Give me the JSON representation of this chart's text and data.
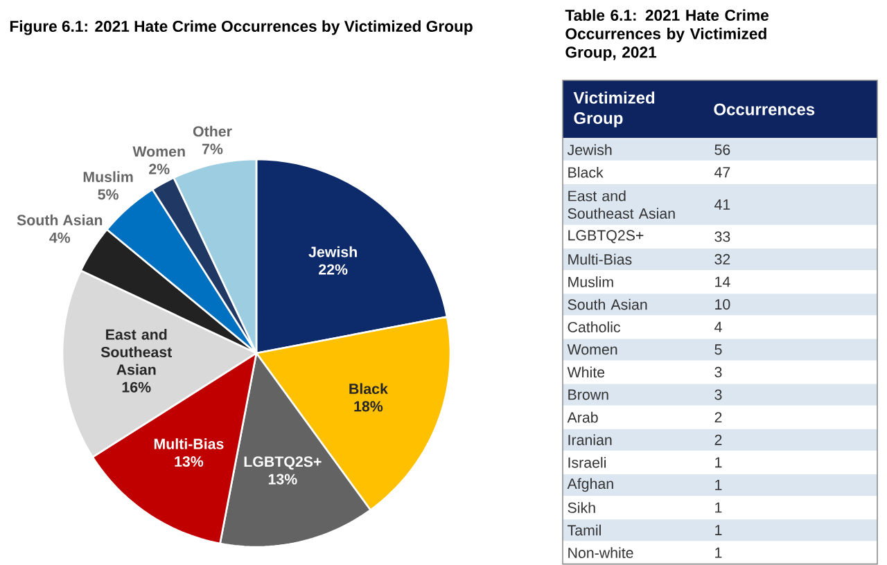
{
  "chart_data": [
    {
      "type": "pie",
      "title": "Figure 6.1: 2021 Hate Crime Occurrences by Victimized Group",
      "categories": [
        "Jewish",
        "Black",
        "LGBTQ2S+",
        "Multi-Bias",
        "East and Southeast Asian",
        "South Asian",
        "Muslim",
        "Women",
        "Other"
      ],
      "values": [
        22,
        18,
        13,
        13,
        16,
        4,
        5,
        2,
        7
      ],
      "value_labels": [
        "22%",
        "18%",
        "13%",
        "13%",
        "16%",
        "4%",
        "5%",
        "2%",
        "7%"
      ],
      "colors": [
        "#0d2a6b",
        "#ffc000",
        "#636363",
        "#c00000",
        "#d9d9d9",
        "#222222",
        "#0070c0",
        "#1f3864",
        "#9dcde0"
      ]
    },
    {
      "type": "other",
      "title": "Table 6.1: 2021 Hate Crime Occurrences by Victimized Group, 2021",
      "annotations": [
        "Victimized Group",
        "Occurrences"
      ],
      "data_labels": true,
      "categories": [
        "Jewish",
        "Black",
        "East and Southeast Asian",
        "LGBTQ2S+",
        "Multi-Bias",
        "Muslim",
        "South Asian",
        "Catholic",
        "Women",
        "White",
        "Brown",
        "Arab",
        "Iranian",
        "Israeli",
        "Afghan",
        "Sikh",
        "Tamil",
        "Non-white"
      ],
      "values": [
        56,
        47,
        41,
        33,
        32,
        14,
        10,
        4,
        5,
        3,
        3,
        2,
        2,
        1,
        1,
        1,
        1,
        1
      ]
    }
  ]
}
